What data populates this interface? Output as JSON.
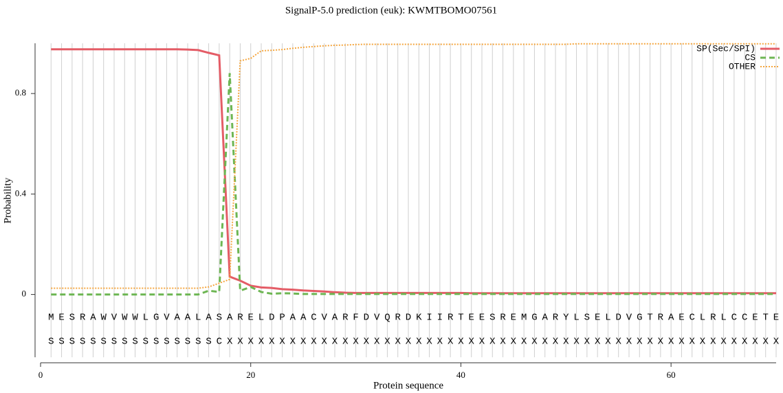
{
  "chart_data": {
    "type": "line",
    "title": "SignalP-5.0 prediction (euk):  KWMTBOMO07561",
    "xlabel": "Protein sequence",
    "ylabel": "Probability",
    "xlim": [
      0,
      70
    ],
    "xticks": [
      0,
      20,
      40,
      60
    ],
    "ylim": [
      -0.25,
      1.0
    ],
    "yticks": [
      0,
      0.4,
      0.8
    ],
    "legend": "upper right",
    "x": [
      1,
      2,
      3,
      4,
      5,
      6,
      7,
      8,
      9,
      10,
      11,
      12,
      13,
      14,
      15,
      16,
      17,
      18,
      19,
      20,
      21,
      22,
      23,
      24,
      25,
      26,
      27,
      28,
      29,
      30,
      31,
      32,
      33,
      34,
      35,
      36,
      37,
      38,
      39,
      40,
      41,
      42,
      43,
      44,
      45,
      46,
      47,
      48,
      49,
      50,
      51,
      52,
      53,
      54,
      55,
      56,
      57,
      58,
      59,
      60,
      61,
      62,
      63,
      64,
      65,
      66,
      67,
      68,
      69,
      70
    ],
    "sequence": [
      "M",
      "E",
      "S",
      "R",
      "A",
      "W",
      "V",
      "W",
      "W",
      "L",
      "G",
      "V",
      "A",
      "A",
      "L",
      "A",
      "S",
      "A",
      "R",
      "E",
      "L",
      "D",
      "P",
      "A",
      "A",
      "C",
      "V",
      "A",
      "R",
      "F",
      "D",
      "V",
      "Q",
      "R",
      "D",
      "K",
      "I",
      "I",
      "R",
      "T",
      "E",
      "E",
      "S",
      "R",
      "E",
      "M",
      "G",
      "A",
      "R",
      "Y",
      "L",
      "S",
      "E",
      "L",
      "D",
      "V",
      "G",
      "T",
      "R",
      "A",
      "E",
      "C",
      "L",
      "R",
      "L",
      "C",
      "C",
      "E",
      "T",
      "E"
    ],
    "annotation": [
      "S",
      "S",
      "S",
      "S",
      "S",
      "S",
      "S",
      "S",
      "S",
      "S",
      "S",
      "S",
      "S",
      "S",
      "S",
      "S",
      "C",
      "X",
      "X",
      "X",
      "X",
      "X",
      "X",
      "X",
      "X",
      "X",
      "X",
      "X",
      "X",
      "X",
      "X",
      "X",
      "X",
      "X",
      "X",
      "X",
      "X",
      "X",
      "X",
      "X",
      "X",
      "X",
      "X",
      "X",
      "X",
      "X",
      "X",
      "X",
      "X",
      "X",
      "X",
      "X",
      "X",
      "X",
      "X",
      "X",
      "X",
      "X",
      "X",
      "X",
      "X",
      "X",
      "X",
      "X",
      "X",
      "X",
      "X",
      "X",
      "X",
      "X"
    ],
    "series": [
      {
        "name": "SP(Sec/SPI)",
        "color": "#e45c66",
        "dash": "solid",
        "values": [
          0.976,
          0.976,
          0.976,
          0.976,
          0.976,
          0.976,
          0.976,
          0.976,
          0.976,
          0.976,
          0.976,
          0.976,
          0.976,
          0.975,
          0.973,
          0.962,
          0.952,
          0.071,
          0.055,
          0.035,
          0.028,
          0.026,
          0.021,
          0.019,
          0.016,
          0.014,
          0.012,
          0.009,
          0.007,
          0.006,
          0.006,
          0.006,
          0.006,
          0.006,
          0.006,
          0.006,
          0.006,
          0.006,
          0.006,
          0.006,
          0.005,
          0.005,
          0.005,
          0.005,
          0.005,
          0.005,
          0.005,
          0.005,
          0.005,
          0.005,
          0.005,
          0.005,
          0.005,
          0.005,
          0.005,
          0.005,
          0.005,
          0.005,
          0.005,
          0.005,
          0.005,
          0.005,
          0.005,
          0.005,
          0.005,
          0.005,
          0.005,
          0.005,
          0.005,
          0.005
        ]
      },
      {
        "name": "CS",
        "color": "#6db653",
        "dash": "dashed",
        "values": [
          0,
          0,
          0,
          0,
          0,
          0,
          0,
          0,
          0,
          0,
          0,
          0,
          0,
          0,
          0,
          0.015,
          0.01,
          0.881,
          0.015,
          0.03,
          0.01,
          0.003,
          0.005,
          0.004,
          0.002,
          0.002,
          0.002,
          0.002,
          0.002,
          0.002,
          0.002,
          0.002,
          0.002,
          0.002,
          0.002,
          0.002,
          0.002,
          0.002,
          0.002,
          0.002,
          0.002,
          0.002,
          0.002,
          0.002,
          0.002,
          0.002,
          0.002,
          0.002,
          0.002,
          0.002,
          0.002,
          0.002,
          0.002,
          0.002,
          0.002,
          0.002,
          0.002,
          0.002,
          0.002,
          0.002,
          0.002,
          0.002,
          0.002,
          0.002,
          0.002,
          0.002,
          0.002,
          0.002,
          0.002,
          0.002
        ]
      },
      {
        "name": "OTHER",
        "color": "#f5a53c",
        "dash": "dotted",
        "values": [
          0.025,
          0.025,
          0.025,
          0.025,
          0.025,
          0.025,
          0.025,
          0.025,
          0.025,
          0.025,
          0.025,
          0.025,
          0.025,
          0.025,
          0.025,
          0.03,
          0.045,
          0.06,
          0.93,
          0.94,
          0.97,
          0.972,
          0.975,
          0.98,
          0.984,
          0.987,
          0.99,
          0.992,
          0.993,
          0.995,
          0.996,
          0.996,
          0.996,
          0.996,
          0.996,
          0.996,
          0.996,
          0.996,
          0.996,
          0.996,
          0.996,
          0.996,
          0.996,
          0.996,
          0.996,
          0.996,
          0.996,
          0.996,
          0.996,
          0.996,
          0.998,
          0.998,
          0.998,
          0.998,
          0.998,
          0.998,
          0.998,
          0.998,
          0.998,
          0.998,
          0.998,
          0.998,
          0.998,
          0.998,
          0.998,
          0.998,
          0.998,
          0.998,
          0.998,
          0.998
        ]
      }
    ]
  }
}
